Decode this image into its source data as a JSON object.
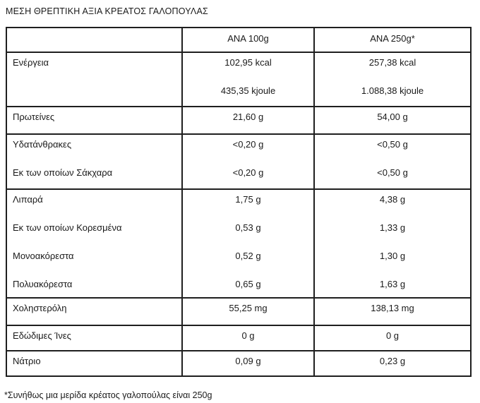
{
  "title": "ΜΕΣΗ ΘΡΕΠΤΙΚΗ ΑΞΙΑ ΚΡΕΑΤΟΣ ΓΑΛΟΠΟΥΛΑΣ",
  "table": {
    "columns": [
      "",
      "ΑΝΑ 100g",
      "ΑΝΑ 250g*"
    ],
    "rows": [
      {
        "lines": [
          {
            "label": "Ενέργεια",
            "per100": "102,95 kcal",
            "per250": "257,38 kcal"
          },
          {
            "label": "",
            "per100": "435,35 kjoule",
            "per250": "1.088,38 kjoule"
          }
        ]
      },
      {
        "lines": [
          {
            "label": "Πρωτείνες",
            "per100": "21,60 g",
            "per250": "54,00 g"
          }
        ]
      },
      {
        "lines": [
          {
            "label": "Υδατάνθρακες",
            "per100": "<0,20 g",
            "per250": "<0,50 g"
          },
          {
            "label": "Εκ των οποίων Σάκχαρα",
            "per100": "<0,20 g",
            "per250": "<0,50 g"
          }
        ]
      },
      {
        "lines": [
          {
            "label": "Λιπαρά",
            "per100": "1,75 g",
            "per250": "4,38 g"
          },
          {
            "label": "Εκ των οποίων Κορεσμένα",
            "per100": "0,53 g",
            "per250": "1,33 g"
          },
          {
            "label": "Μονοακόρεστα",
            "per100": "0,52 g",
            "per250": "1,30 g"
          },
          {
            "label": "Πολυακόρεστα",
            "per100": "0,65 g",
            "per250": "1,63 g"
          }
        ]
      },
      {
        "lines": [
          {
            "label": "Χοληστερόλη",
            "per100": "55,25 mg",
            "per250": "138,13 mg"
          }
        ]
      },
      {
        "lines": [
          {
            "label": "Εδώδιμες Ίνες",
            "per100": "0 g",
            "per250": "0 g"
          }
        ]
      },
      {
        "lines": [
          {
            "label": "Νάτριο",
            "per100": "0,09 g",
            "per250": "0,23 g"
          }
        ]
      }
    ]
  },
  "footnote": "*Συνήθως μια μερίδα κρέατος γαλοπούλας είναι 250g",
  "colors": {
    "text": "#1a1a1a",
    "border": "#1f1f1f",
    "background": "#ffffff"
  }
}
